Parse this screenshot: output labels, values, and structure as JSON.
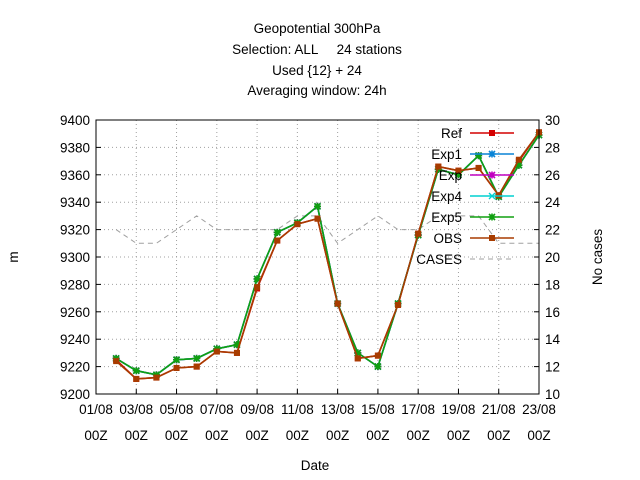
{
  "chart_data": {
    "type": "line",
    "title_lines": [
      "Geopotential 300hPa",
      "Selection: ALL     24 stations",
      "Used {12} + 24",
      "Averaging window: 24h"
    ],
    "xlabel": "Date",
    "ylabel": "m",
    "y2label": "No cases",
    "ylim": [
      9200,
      9400
    ],
    "y2lim": [
      10,
      30
    ],
    "yticks": [
      9200,
      9220,
      9240,
      9260,
      9280,
      9300,
      9320,
      9340,
      9360,
      9380,
      9400
    ],
    "y2ticks": [
      10,
      12,
      14,
      16,
      18,
      20,
      22,
      24,
      26,
      28,
      30
    ],
    "xlim": [
      0,
      22
    ],
    "xtick_labels": [
      [
        "01/08",
        "00Z"
      ],
      [
        "03/08",
        "00Z"
      ],
      [
        "05/08",
        "00Z"
      ],
      [
        "07/08",
        "00Z"
      ],
      [
        "09/08",
        "00Z"
      ],
      [
        "11/08",
        "00Z"
      ],
      [
        "13/08",
        "00Z"
      ],
      [
        "15/08",
        "00Z"
      ],
      [
        "17/08",
        "00Z"
      ],
      [
        "19/08",
        "00Z"
      ],
      [
        "21/08",
        "00Z"
      ],
      [
        "23/08",
        "00Z"
      ]
    ],
    "grid": true,
    "legend_position": "top-right",
    "x": [
      1,
      2,
      3,
      4,
      5,
      6,
      7,
      8,
      9,
      10,
      11,
      12,
      13,
      14,
      15,
      16,
      17,
      18,
      19,
      20,
      21,
      22
    ],
    "series": [
      {
        "name": "Ref",
        "color": "#d40000",
        "marker": "square",
        "axis": "y1",
        "values": [
          9225,
          9211,
          9212,
          9219,
          9220,
          9231,
          9230,
          9277,
          9312,
          9324,
          9328,
          9266,
          9226,
          9228,
          9265,
          9317,
          9366,
          9363,
          9365,
          9345,
          9370,
          9391
        ]
      },
      {
        "name": "Exp1",
        "color": "#0a84d6",
        "marker": "star",
        "axis": "y1",
        "values": [
          9226,
          9217,
          9214,
          9225,
          9226,
          9233,
          9236,
          9284,
          9318,
          9325,
          9337,
          9266,
          9230,
          9220,
          9266,
          9316,
          9364,
          9360,
          9374,
          9344,
          9367,
          9389
        ]
      },
      {
        "name": "Exp",
        "color": "#c000c0",
        "marker": "star",
        "axis": "y1",
        "values": [
          9226,
          9217,
          9214,
          9225,
          9226,
          9233,
          9236,
          9284,
          9318,
          9325,
          9337,
          9266,
          9230,
          9220,
          9266,
          9316,
          9364,
          9360,
          9374,
          9344,
          9367,
          9389
        ]
      },
      {
        "name": "Exp4",
        "color": "#00d0d0",
        "marker": "x",
        "axis": "y1",
        "values": [
          9226,
          9217,
          9214,
          9225,
          9226,
          9233,
          9236,
          9284,
          9318,
          9325,
          9337,
          9266,
          9230,
          9220,
          9266,
          9316,
          9364,
          9360,
          9374,
          9344,
          9367,
          9389
        ]
      },
      {
        "name": "Exp5",
        "color": "#10a010",
        "marker": "star",
        "axis": "y1",
        "values": [
          9226,
          9217,
          9214,
          9225,
          9226,
          9233,
          9236,
          9284,
          9318,
          9325,
          9337,
          9266,
          9230,
          9220,
          9266,
          9316,
          9364,
          9360,
          9374,
          9344,
          9367,
          9389
        ]
      },
      {
        "name": "OBS",
        "color": "#a83c00",
        "marker": "square",
        "axis": "y1",
        "values": [
          9224,
          9211,
          9212,
          9219,
          9220,
          9231,
          9230,
          9278,
          9312,
          9324,
          9328,
          9266,
          9226,
          9228,
          9265,
          9317,
          9366,
          9363,
          9365,
          9345,
          9371,
          9391
        ]
      },
      {
        "name": "CASES",
        "color": "#a0a0a0",
        "marker": "none",
        "dash": true,
        "axis": "y2",
        "values": [
          22,
          21,
          21,
          22,
          23,
          22,
          22,
          22,
          22,
          23,
          23,
          21,
          22,
          23,
          22,
          22,
          23,
          23,
          23,
          21,
          21,
          21
        ]
      }
    ]
  }
}
